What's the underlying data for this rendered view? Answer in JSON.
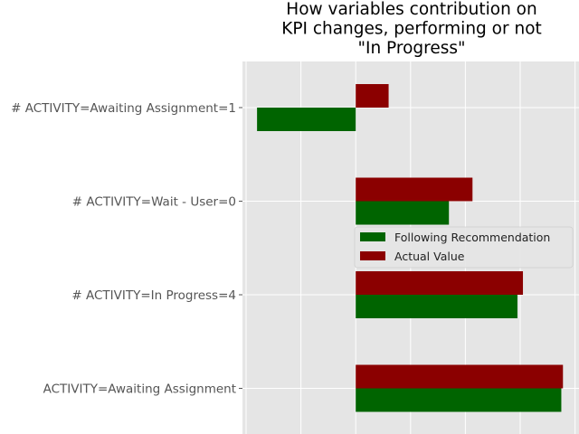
{
  "chart_data": {
    "type": "bar",
    "orientation": "horizontal",
    "title_lines": [
      "How variables contribution on",
      "KPI changes, performing or not",
      "\"In Progress\""
    ],
    "categories": [
      "# ACTIVITY=Awaiting Assignment=1",
      "# ACTIVITY=Wait - User=0",
      "# ACTIVITY=In Progress=4",
      "ACTIVITY=Awaiting Assignment"
    ],
    "series": [
      {
        "name": "Following Recommendation",
        "color": "#006400",
        "values": [
          -0.18,
          0.17,
          0.295,
          0.375
        ]
      },
      {
        "name": "Actual Value",
        "color": "#8b0000",
        "values": [
          0.06,
          0.213,
          0.305,
          0.378
        ]
      }
    ],
    "xlim": [
      -0.2,
      0.41
    ],
    "xticks": [
      -0.2,
      -0.1,
      0.0,
      0.1,
      0.2,
      0.3,
      0.4
    ],
    "grid": true,
    "background": "#e5e5e5",
    "legend": {
      "placement": "center-right"
    }
  }
}
